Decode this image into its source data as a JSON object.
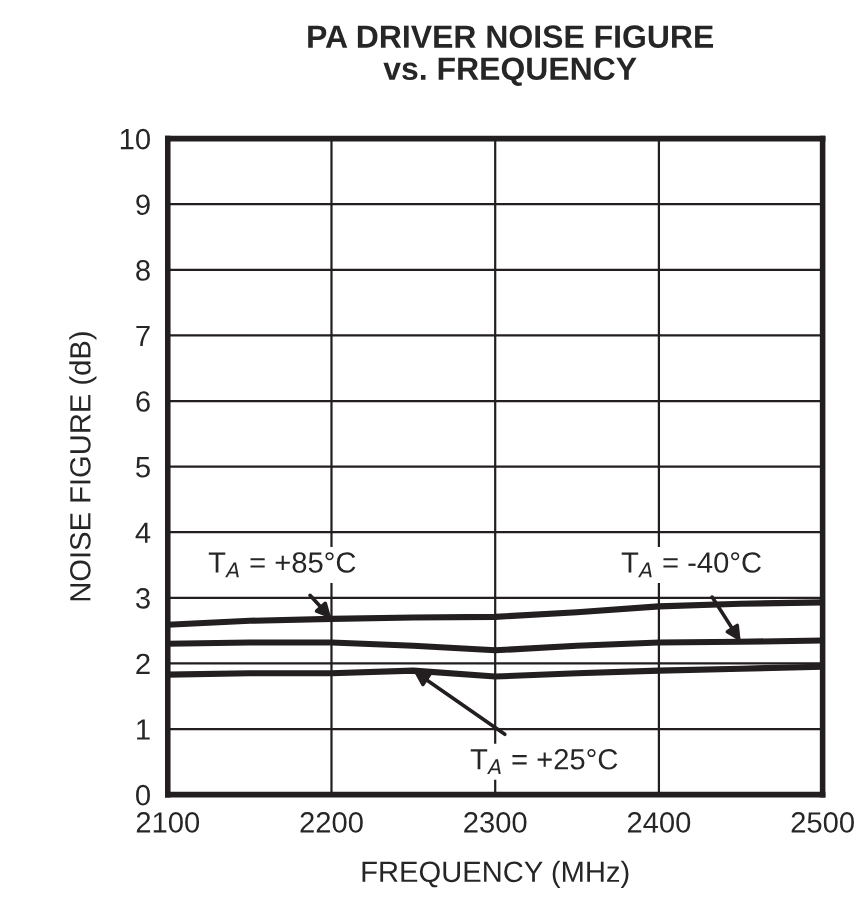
{
  "chart_data": {
    "type": "line",
    "title": "PA DRIVER NOISE FIGURE\nvs. FREQUENCY",
    "xlabel": "FREQUENCY (MHz)",
    "ylabel": "NOISE FIGURE (dB)",
    "x": [
      2100,
      2150,
      2200,
      2250,
      2300,
      2350,
      2400,
      2450,
      2500
    ],
    "series": [
      {
        "color": "#231f20",
        "values": [
          2.59,
          2.65,
          2.68,
          2.7,
          2.71,
          2.78,
          2.87,
          2.91,
          2.93
        ]
      },
      {
        "color": "#231f20",
        "values": [
          2.3,
          2.32,
          2.32,
          2.27,
          2.2,
          2.27,
          2.32,
          2.33,
          2.35
        ]
      },
      {
        "color": "#231f20",
        "values": [
          1.83,
          1.85,
          1.85,
          1.89,
          1.8,
          1.85,
          1.89,
          1.92,
          1.95
        ]
      }
    ],
    "xlim": [
      2100,
      2500
    ],
    "xticks": [
      2100,
      2200,
      2300,
      2400,
      2500
    ],
    "ylim": [
      0,
      10
    ],
    "yticks": [
      0,
      1,
      2,
      3,
      4,
      5,
      6,
      7,
      8,
      9,
      10
    ],
    "grid": true,
    "legend": false,
    "annotations": [
      {
        "text": "T$_{A}$ = +85°C",
        "x": 2200,
        "y": 2.68
      },
      {
        "text": "T$_{A}$ = -40°C",
        "x": 2450,
        "y": 2.33
      },
      {
        "text": "T$_{A}$ = +25°C",
        "x": 2250,
        "y": 1.89
      }
    ]
  }
}
